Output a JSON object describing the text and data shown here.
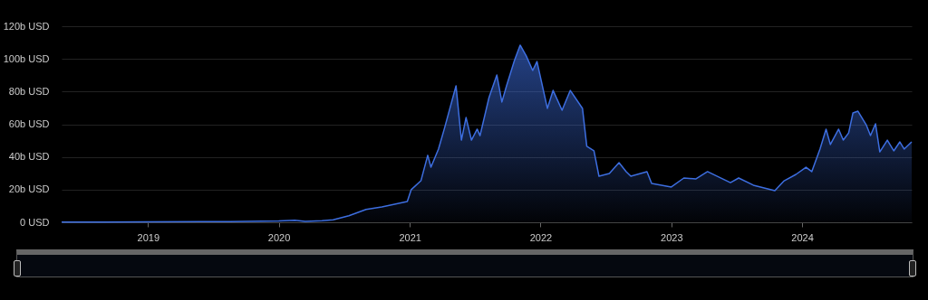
{
  "chart_data": {
    "type": "area",
    "x": [
      "2018-05-05",
      "2018-09-01",
      "2019-01-01",
      "2019-06-01",
      "2019-10-01",
      "2020-01-01",
      "2020-02-15",
      "2020-03-15",
      "2020-05-01",
      "2020-06-01",
      "2020-07-15",
      "2020-09-01",
      "2020-10-15",
      "2020-12-25",
      "2021-01-05",
      "2021-02-01",
      "2021-02-20",
      "2021-03-01",
      "2021-03-22",
      "2021-04-08",
      "2021-05-10",
      "2021-05-25",
      "2021-06-07",
      "2021-06-22",
      "2021-07-08",
      "2021-07-16",
      "2021-08-10",
      "2021-09-01",
      "2021-09-15",
      "2021-09-28",
      "2021-10-20",
      "2021-11-05",
      "2021-11-22",
      "2021-12-10",
      "2021-12-22",
      "2022-01-20",
      "2022-02-05",
      "2022-03-02",
      "2022-03-25",
      "2022-04-28",
      "2022-05-10",
      "2022-05-30",
      "2022-06-13",
      "2022-07-12",
      "2022-08-08",
      "2022-08-28",
      "2022-09-10",
      "2022-10-25",
      "2022-11-07",
      "2023-01-01",
      "2023-02-05",
      "2023-03-10",
      "2023-04-12",
      "2023-06-15",
      "2023-07-08",
      "2023-08-18",
      "2023-10-17",
      "2023-11-12",
      "2023-12-15",
      "2024-01-12",
      "2024-01-28",
      "2024-02-20",
      "2024-03-08",
      "2024-03-20",
      "2024-04-12",
      "2024-04-25",
      "2024-05-10",
      "2024-05-22",
      "2024-06-05",
      "2024-06-28",
      "2024-07-10",
      "2024-07-24",
      "2024-08-05",
      "2024-08-26",
      "2024-09-13",
      "2024-09-30",
      "2024-10-12",
      "2024-11-02"
    ],
    "series": [
      {
        "color": "#3d6ee0",
        "values": [
          0.1,
          0.2,
          0.3,
          0.4,
          0.5,
          0.8,
          1.3,
          0.5,
          1.0,
          1.5,
          4,
          7.9,
          9.4,
          12.7,
          20,
          25.4,
          41,
          33.7,
          44.8,
          57.7,
          83.5,
          50.3,
          64.1,
          50.3,
          57,
          53,
          76.3,
          90.1,
          73.6,
          83.5,
          99,
          108.4,
          101.8,
          92.9,
          98.4,
          69.7,
          80.7,
          68.6,
          80.7,
          69.7,
          46.5,
          43.7,
          28.2,
          29.9,
          36.5,
          31,
          28.2,
          31,
          23.8,
          21.6,
          27.1,
          26.5,
          31,
          24.3,
          27.1,
          22.7,
          19.4,
          25.4,
          29.3,
          33.7,
          31,
          44.8,
          57,
          47.6,
          57,
          50.3,
          54.7,
          66.9,
          68,
          59.7,
          53.1,
          60.3,
          43.1,
          50.3,
          43.7,
          49.2,
          44.8,
          49.2
        ]
      }
    ],
    "xlim": [
      "2018-05-05",
      "2024-11-02"
    ],
    "xticks": [
      {
        "value": "2019",
        "label": "2019"
      },
      {
        "value": "2020",
        "label": "2020"
      },
      {
        "value": "2021",
        "label": "2021"
      },
      {
        "value": "2022",
        "label": "2022"
      },
      {
        "value": "2023",
        "label": "2023"
      },
      {
        "value": "2024",
        "label": "2024"
      }
    ],
    "ylim": [
      0,
      120
    ],
    "yticks": [
      {
        "value": 0,
        "label": "0 USD"
      },
      {
        "value": 20,
        "label": "20b USD"
      },
      {
        "value": 40,
        "label": "40b USD"
      },
      {
        "value": 60,
        "label": "60b USD"
      },
      {
        "value": 80,
        "label": "80b USD"
      },
      {
        "value": 100,
        "label": "100b USD"
      },
      {
        "value": 120,
        "label": "120b USD"
      }
    ],
    "grid": "y"
  }
}
